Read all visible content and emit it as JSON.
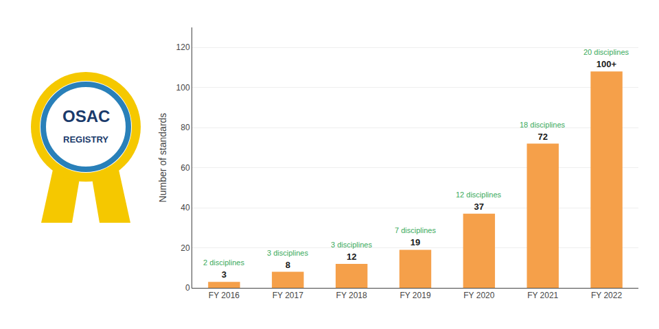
{
  "chart_data": {
    "type": "bar",
    "categories": [
      "FY 2016",
      "FY 2017",
      "FY 2018",
      "FY 2019",
      "FY 2020",
      "FY 2021",
      "FY 2022"
    ],
    "values": [
      3,
      8,
      12,
      19,
      37,
      72,
      108
    ],
    "value_labels": [
      "3",
      "8",
      "12",
      "19",
      "37",
      "72",
      "100+"
    ],
    "data_labels": true,
    "color": "#F5A04A",
    "ylabel": "Number of standards",
    "ylim": [
      0,
      130
    ],
    "yticks": [
      0,
      20,
      40,
      60,
      80,
      100,
      120
    ],
    "grid": true,
    "annotations": [
      {
        "category": "FY 2016",
        "text": "2 disciplines",
        "color": "#3aaa5c"
      },
      {
        "category": "FY 2017",
        "text": "3 disciplines",
        "color": "#3aaa5c"
      },
      {
        "category": "FY 2018",
        "text": "3 disciplines",
        "color": "#3aaa5c"
      },
      {
        "category": "FY 2019",
        "text": "7 disciplines",
        "color": "#3aaa5c"
      },
      {
        "category": "FY 2020",
        "text": "12 disciplines",
        "color": "#3aaa5c"
      },
      {
        "category": "FY 2021",
        "text": "18 disciplines",
        "color": "#3aaa5c"
      },
      {
        "category": "FY 2022",
        "text": "20 disciplines",
        "color": "#3aaa5c"
      },
      {
        "text": "OSAC",
        "color": "#1a3a6b"
      },
      {
        "text": "REGISTRY",
        "color": "#1a3a6b"
      }
    ]
  }
}
